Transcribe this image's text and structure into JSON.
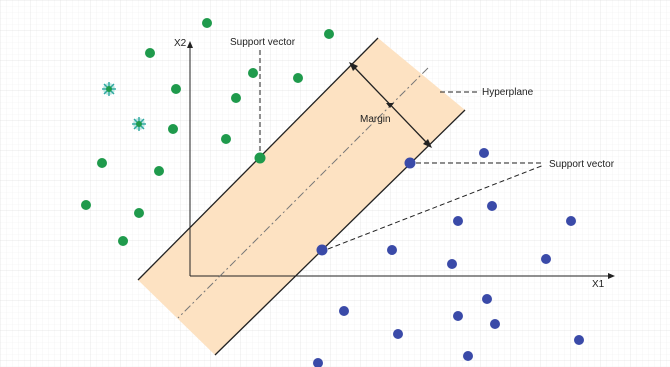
{
  "labels": {
    "x1": "X1",
    "x2": "X2",
    "hyperplane": "Hyperplane",
    "margin": "Margin",
    "support_vector_top": "Support vector",
    "support_vector_right": "Support vector"
  },
  "colors": {
    "class_a": "#1f9a4c",
    "class_b": "#3a4aa8",
    "margin_band": "#fde2c2",
    "axis": "#222222",
    "star_marker": "#2ea8a0"
  }
}
